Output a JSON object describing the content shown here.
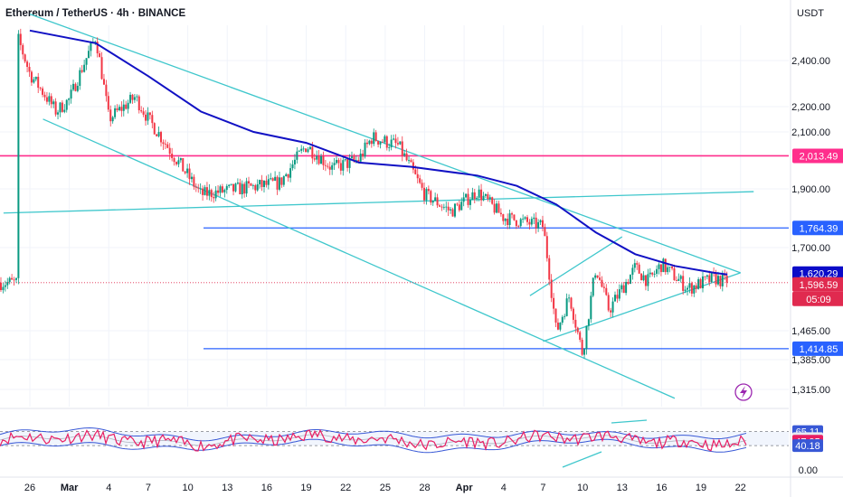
{
  "header": {
    "title": "Ethereum / TetherUS · 4h · BINANCE",
    "currency": "USDT"
  },
  "colors": {
    "up": "#089981",
    "down": "#f23645",
    "ma": "#1111c4",
    "channel": "#3fc7cc",
    "support": "#2962ff",
    "resistance": "#ff2e8c",
    "rsi_line": "#e91e63",
    "rsi_band": "#3858d6",
    "live": "#e02a4f",
    "ma_badge": "#0b0bc8"
  },
  "chart_data": [
    {
      "type": "candlestick",
      "ylabel": "USDT",
      "y_ticks": [
        "2,400.00",
        "2,200.00",
        "2,100.00",
        "1,900.00",
        "1,700.00",
        "1,465.00",
        "1,385.00",
        "1,315.00"
      ],
      "y_tick_values": [
        2400,
        2200,
        2100,
        1900,
        1700,
        1465,
        1385,
        1315
      ],
      "x_ticks": [
        "26",
        "Mar",
        "4",
        "7",
        "10",
        "13",
        "16",
        "19",
        "22",
        "25",
        "28",
        "Apr",
        "4",
        "7",
        "10",
        "13",
        "16",
        "19",
        "22"
      ],
      "ohlc_anchors": [
        {
          "x": "Feb 25",
          "close": 2520
        },
        {
          "x": "Feb 26",
          "close": 2340
        },
        {
          "x": "Feb 28",
          "close": 2180
        },
        {
          "x": "Mar 1",
          "close": 2230
        },
        {
          "x": "Mar 3",
          "close": 2510
        },
        {
          "x": "Mar 4",
          "close": 2150
        },
        {
          "x": "Mar 6",
          "close": 2240
        },
        {
          "x": "Mar 7",
          "close": 2150
        },
        {
          "x": "Mar 9",
          "close": 2010
        },
        {
          "x": "Mar 11",
          "close": 1880
        },
        {
          "x": "Mar 14",
          "close": 1900
        },
        {
          "x": "Mar 17",
          "close": 1920
        },
        {
          "x": "Mar 19",
          "close": 2050
        },
        {
          "x": "Mar 21",
          "close": 1970
        },
        {
          "x": "Mar 23",
          "close": 2000
        },
        {
          "x": "Mar 24",
          "close": 2080
        },
        {
          "x": "Mar 26",
          "close": 2050
        },
        {
          "x": "Mar 28",
          "close": 1880
        },
        {
          "x": "Mar 30",
          "close": 1820
        },
        {
          "x": "Apr 1",
          "close": 1890
        },
        {
          "x": "Apr 3",
          "close": 1800
        },
        {
          "x": "Apr 6",
          "close": 1770
        },
        {
          "x": "Apr 7",
          "close": 1460
        },
        {
          "x": "Apr 8",
          "close": 1560
        },
        {
          "x": "Apr 9",
          "close": 1400
        },
        {
          "x": "Apr 10",
          "close": 1640
        },
        {
          "x": "Apr 11",
          "close": 1520
        },
        {
          "x": "Apr 13",
          "close": 1640
        },
        {
          "x": "Apr 14",
          "close": 1600
        },
        {
          "x": "Apr 15",
          "close": 1650
        },
        {
          "x": "Apr 17",
          "close": 1580
        },
        {
          "x": "Apr 19",
          "close": 1610
        },
        {
          "x": "Apr 20",
          "close": 1596.59
        }
      ],
      "moving_average": [
        {
          "x": "Feb 26",
          "y": 2540
        },
        {
          "x": "Mar 3",
          "y": 2480
        },
        {
          "x": "Mar 7",
          "y": 2330
        },
        {
          "x": "Mar 11",
          "y": 2180
        },
        {
          "x": "Mar 15",
          "y": 2100
        },
        {
          "x": "Mar 19",
          "y": 2060
        },
        {
          "x": "Mar 23",
          "y": 1990
        },
        {
          "x": "Mar 27",
          "y": 1975
        },
        {
          "x": "Apr 1",
          "y": 1945
        },
        {
          "x": "Apr 4",
          "y": 1910
        },
        {
          "x": "Apr 7",
          "y": 1845
        },
        {
          "x": "Apr 10",
          "y": 1750
        },
        {
          "x": "Apr 13",
          "y": 1680
        },
        {
          "x": "Apr 16",
          "y": 1645
        },
        {
          "x": "Apr 19",
          "y": 1625
        },
        {
          "x": "Apr 20",
          "y": 1620.29
        }
      ],
      "horizontal_levels": [
        {
          "value": 2013.49,
          "label": "2,013.49",
          "color": "#ff2e8c",
          "style": "resistance"
        },
        {
          "value": 1764.39,
          "label": "1,764.39",
          "color": "#2962ff",
          "style": "support"
        },
        {
          "value": 1414.85,
          "label": "1,414.85",
          "color": "#2962ff",
          "style": "support"
        }
      ],
      "badges": [
        {
          "label": "1,620.29",
          "color": "#0b0bc8",
          "value": 1620.29
        },
        {
          "label": "1,596.59",
          "color": "#e02a4f",
          "value": 1596.59
        },
        {
          "label": "05:09",
          "color": "#e02a4f"
        }
      ],
      "trendlines": [
        {
          "from": {
            "x": "Feb 27",
            "y": 2150
          },
          "to": {
            "x": "Apr 16",
            "y": 1295
          }
        },
        {
          "from": {
            "x": "Feb 26",
            "y": 2620
          },
          "to": {
            "x": "Apr 21",
            "y": 1625
          }
        },
        {
          "from": {
            "x": "Feb 24",
            "y": 1815
          },
          "to": {
            "x": "Apr 22",
            "y": 1890
          }
        },
        {
          "from": {
            "x": "Apr 5",
            "y": 1560
          },
          "to": {
            "x": "Apr 12",
            "y": 1735
          }
        },
        {
          "from": {
            "x": "Apr 6",
            "y": 1435
          },
          "to": {
            "x": "Apr 21",
            "y": 1625
          }
        }
      ],
      "last_price": 1596.59
    },
    {
      "type": "line",
      "name": "RSI",
      "y_ticks": [
        "0.00"
      ],
      "levels": [
        {
          "value": 65.11,
          "label": "65.11"
        },
        {
          "value": 52.65,
          "label": "52.65"
        },
        {
          "value": 47.95,
          "label": "47.95"
        },
        {
          "value": 40.18,
          "label": "40.18"
        }
      ],
      "last_value": 47.95
    }
  ]
}
